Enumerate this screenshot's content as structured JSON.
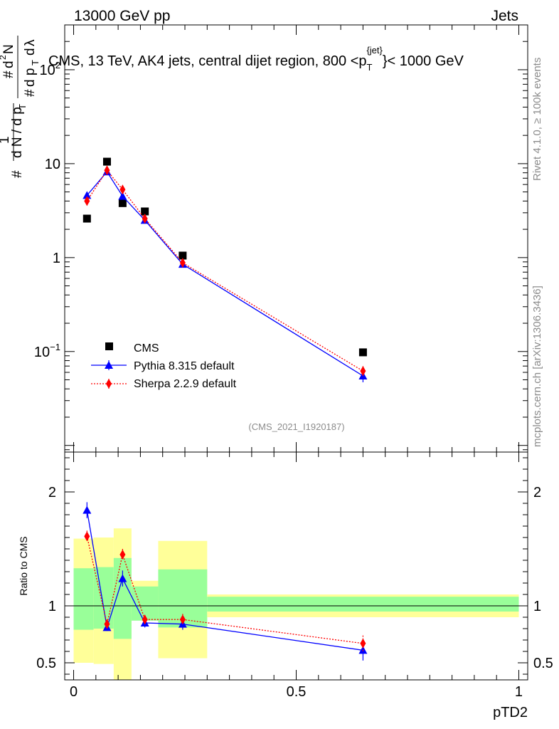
{
  "header": {
    "energy_label": "13000 GeV pp",
    "category_label": "Jets",
    "plot_title": "CMS, 13 TeV, AK4 jets, central dijet region, 800 <p_T^{jet}< 1000 GeV",
    "rivet_label": "Rivet 4.1.0, ≥ 100k events",
    "site_label": "mcplots.cern.ch [arXiv:1306.3436]",
    "analysis_label": "(CMS_2021_I1920187)"
  },
  "chart_data": [
    {
      "type": "line",
      "panel": "main",
      "title": "CMS, 13 TeV, AK4 jets, central dijet region, 800 < pT jet < 1000 GeV",
      "xlabel": "pTD2",
      "ylabel": "(1/dN/dpT) d²N/dpT dλ",
      "yscale": "log",
      "xlim": [
        -0.02,
        1.02
      ],
      "ylim": [
        0.0085,
        300
      ],
      "x_tick_labels": [
        "0",
        "0.5",
        "1"
      ],
      "y_tick_labels": [
        "10^-1",
        "1",
        "10",
        "10^2"
      ],
      "series": [
        {
          "name": "CMS",
          "marker": "square",
          "color": "#000000",
          "x": [
            0.03,
            0.075,
            0.11,
            0.16,
            0.245,
            0.65
          ],
          "values": [
            2.6,
            10.5,
            3.8,
            3.1,
            1.05,
            0.098
          ]
        },
        {
          "name": "Pythia 8.315 default",
          "marker": "triangle",
          "color": "#0000ff",
          "x": [
            0.03,
            0.075,
            0.11,
            0.16,
            0.245,
            0.65
          ],
          "values": [
            4.6,
            8.2,
            4.5,
            2.5,
            0.85,
            0.055
          ],
          "errors": [
            0.25,
            0.3,
            0.2,
            0.12,
            0.05,
            0.008
          ]
        },
        {
          "name": "Sherpa 2.2.9 default",
          "marker": "diamond",
          "color": "#ff0000",
          "x": [
            0.03,
            0.075,
            0.11,
            0.16,
            0.245,
            0.65
          ],
          "values": [
            4.0,
            8.5,
            5.3,
            2.6,
            0.88,
            0.062
          ],
          "errors": [
            0.2,
            0.3,
            0.25,
            0.12,
            0.05,
            0.008
          ]
        }
      ]
    },
    {
      "type": "line",
      "panel": "ratio",
      "ylabel": "Ratio to CMS",
      "xlabel": "pTD2",
      "xlim": [
        -0.02,
        1.02
      ],
      "ylim": [
        0.35,
        2.35
      ],
      "y_tick_labels": [
        "0.5",
        "1",
        "2"
      ],
      "x_tick_labels": [
        "0",
        "0.5",
        "1"
      ],
      "reference_line": 1,
      "bands": {
        "bins": [
          [
            0,
            0.045
          ],
          [
            0.045,
            0.09
          ],
          [
            0.09,
            0.13
          ],
          [
            0.13,
            0.19
          ],
          [
            0.19,
            0.3
          ],
          [
            0.3,
            1.0
          ]
        ],
        "stat_low": [
          0.79,
          0.8,
          0.71,
          0.87,
          0.81,
          0.95
        ],
        "stat_high": [
          1.33,
          1.34,
          1.42,
          1.17,
          1.32,
          1.08
        ],
        "total_low": [
          0.5,
          0.49,
          0.3,
          0.93,
          0.54,
          0.9
        ],
        "total_high": [
          1.59,
          1.6,
          1.68,
          1.22,
          1.57,
          1.1
        ],
        "stat_color": "#99ff99",
        "total_color": "#ffff99"
      },
      "series": [
        {
          "name": "Pythia 8.315 default",
          "color": "#0000ff",
          "x": [
            0.03,
            0.075,
            0.11,
            0.16,
            0.245,
            0.65
          ],
          "values": [
            1.84,
            0.81,
            1.24,
            0.85,
            0.84,
            0.61
          ],
          "errors": [
            0.07,
            0.03,
            0.07,
            0.04,
            0.05,
            0.09
          ]
        },
        {
          "name": "Sherpa 2.2.9 default",
          "color": "#ff0000",
          "x": [
            0.03,
            0.075,
            0.11,
            0.16,
            0.245,
            0.65
          ],
          "values": [
            1.61,
            0.84,
            1.45,
            0.88,
            0.88,
            0.67
          ],
          "errors": [
            0.05,
            0.03,
            0.05,
            0.04,
            0.05,
            0.07
          ]
        }
      ]
    }
  ]
}
